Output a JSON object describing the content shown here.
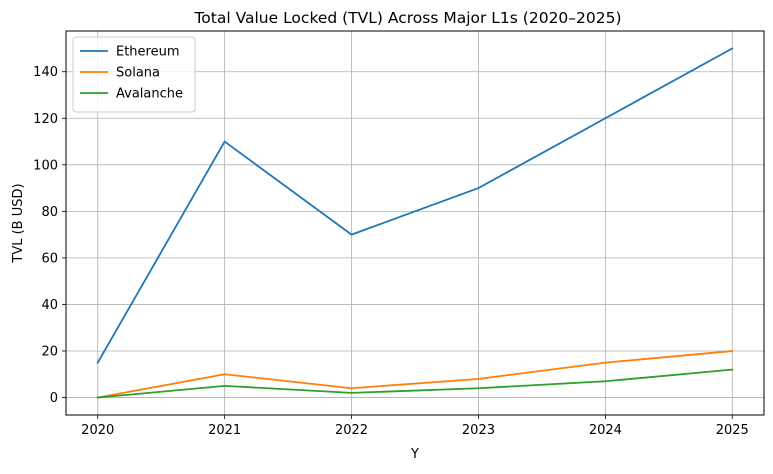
{
  "chart_data": {
    "type": "line",
    "title": "Total Value Locked (TVL) Across Major L1s (2020–2025)",
    "xlabel": "Y",
    "ylabel": "TVL (B USD)",
    "x": [
      2020,
      2021,
      2022,
      2023,
      2024,
      2025
    ],
    "x_tick_labels": [
      "2020",
      "2021",
      "2022",
      "2023",
      "2024",
      "2025"
    ],
    "y_ticks": [
      0,
      20,
      40,
      60,
      80,
      100,
      120,
      140
    ],
    "y_tick_labels": [
      "0",
      "20",
      "40",
      "60",
      "80",
      "100",
      "120",
      "140"
    ],
    "xlim": [
      2019.75,
      2025.25
    ],
    "ylim": [
      -7.5,
      157.5
    ],
    "grid": true,
    "legend_position": "upper-left",
    "series": [
      {
        "name": "Ethereum",
        "color": "#1f77b4",
        "values": [
          15,
          110,
          70,
          90,
          120,
          150
        ]
      },
      {
        "name": "Solana",
        "color": "#ff7f0e",
        "values": [
          0,
          10,
          4,
          8,
          15,
          20
        ]
      },
      {
        "name": "Avalanche",
        "color": "#2ca02c",
        "values": [
          0,
          5,
          2,
          4,
          7,
          12
        ]
      }
    ]
  }
}
